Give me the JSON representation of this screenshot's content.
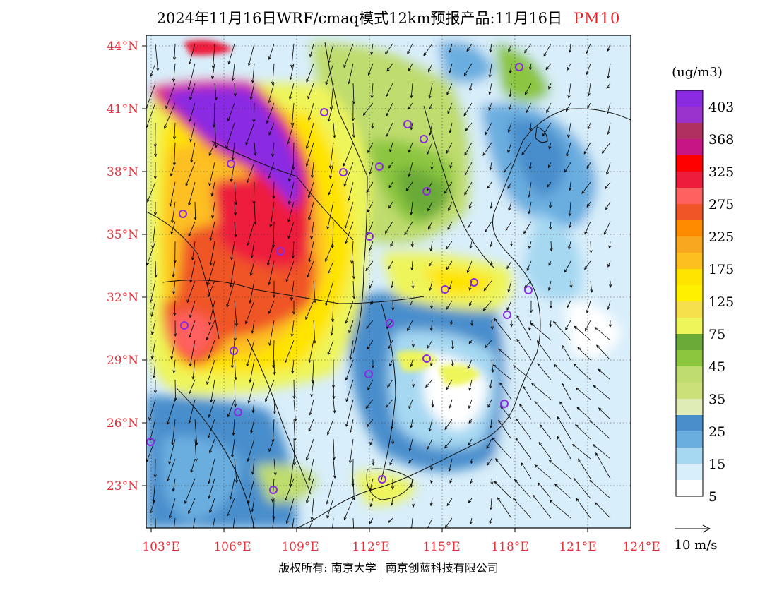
{
  "title": {
    "main": "2024年11月16日WRF/cmaq模式12km预报产品:11月16日",
    "variable": "PM10"
  },
  "unit_label": "(ug/m3)",
  "colorbar": {
    "labels": [
      "403",
      "368",
      "325",
      "275",
      "225",
      "175",
      "125",
      "75",
      "45",
      "35",
      "25",
      "15",
      "5"
    ],
    "colors": [
      "#8a2be2",
      "#9a32cd",
      "#b03060",
      "#c71585",
      "#ff0000",
      "#ee1c3c",
      "#ff6060",
      "#f05528",
      "#ff8c00",
      "#f8a820",
      "#fdbf20",
      "#ffe400",
      "#fff000",
      "#f6e04c",
      "#eef55a",
      "#6aaa38",
      "#8cc63f",
      "#bfdc6e",
      "#cce07a",
      "#dfecb5",
      "#4a8ecc",
      "#6aaee0",
      "#a6d8f2",
      "#d8eefa",
      "#ffffff"
    ]
  },
  "axes": {
    "lat_labels": [
      "44°N",
      "41°N",
      "38°N",
      "35°N",
      "32°N",
      "29°N",
      "26°N",
      "23°N"
    ],
    "lon_labels": [
      "103°E",
      "106°E",
      "109°E",
      "112°E",
      "115°E",
      "118°E",
      "121°E",
      "124°E"
    ]
  },
  "wind_reference": {
    "label": "10 m/s"
  },
  "copyright": {
    "left": "版权所有: 南京大学",
    "right": "南京创蓝科技有限公司"
  },
  "icons": {
    "city_marker": "city-circle-icon",
    "wind_arrow": "wind-vector-icon"
  }
}
